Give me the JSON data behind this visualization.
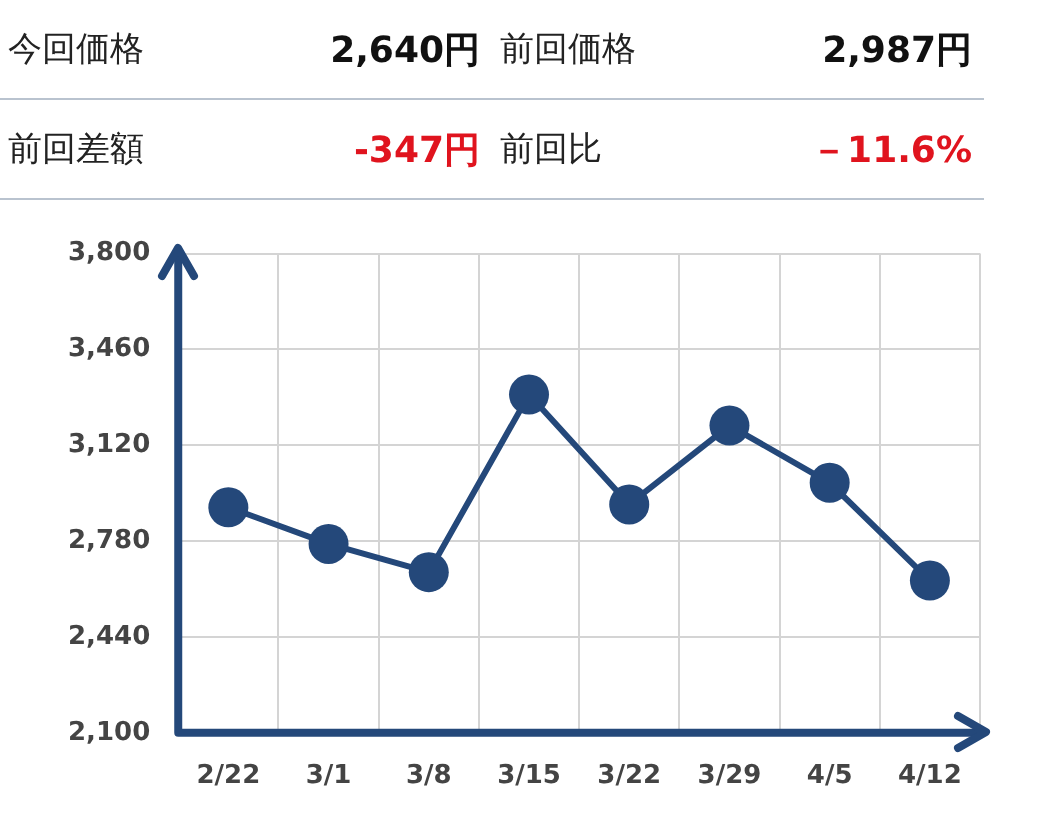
{
  "chart_data": [
    {
      "type": "other",
      "annotations": [
        "今回価格",
        "2,640円",
        "前回価格",
        "2,987円",
        "前回差額",
        "-347円",
        "前回比",
        "－11.6%"
      ]
    },
    {
      "type": "line",
      "categories": [
        "2/22",
        "3/1",
        "3/8",
        "3/15",
        "3/22",
        "3/29",
        "4/5",
        "4/12"
      ],
      "series": [
        {
          "color": "#24487a",
          "values": [
            2900,
            2770,
            2670,
            3300,
            2910,
            3190,
            2987,
            2640
          ]
        }
      ],
      "ylim": [
        2100,
        3800
      ],
      "yticks": [
        {
          "value": 2100,
          "label": "2,100"
        },
        {
          "value": 2440,
          "label": "2,440"
        },
        {
          "value": 2780,
          "label": "2,780"
        },
        {
          "value": 3120,
          "label": "3,120"
        },
        {
          "value": 3460,
          "label": "3,460"
        },
        {
          "value": 3800,
          "label": "3,800"
        }
      ],
      "grid": true,
      "legend": false,
      "marker": "circle",
      "line_style": "solid"
    }
  ]
}
